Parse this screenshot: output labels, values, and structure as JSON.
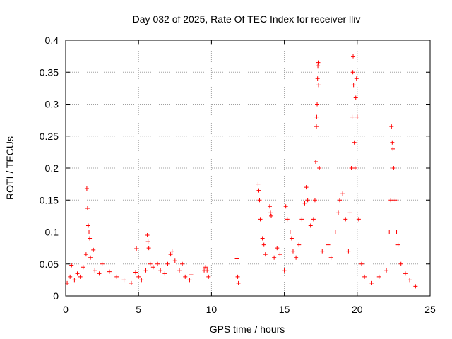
{
  "chart_data": {
    "type": "scatter",
    "title": "Day 032 of 2025, Rate Of TEC Index for receiver lliv",
    "xlabel": "GPS time / hours",
    "ylabel": "ROTI / TECUs",
    "xlim": [
      0,
      25
    ],
    "ylim": [
      0,
      0.4
    ],
    "x_ticks": [
      0,
      5,
      10,
      15,
      20,
      25
    ],
    "x_tick_labels": [
      "0",
      "5",
      "10",
      "15",
      "20",
      "25"
    ],
    "y_ticks": [
      0,
      0.05,
      0.1,
      0.15,
      0.2,
      0.25,
      0.3,
      0.35,
      0.4
    ],
    "y_tick_labels": [
      "0",
      "0.05",
      "0.1",
      "0.15",
      "0.2",
      "0.25",
      "0.3",
      "0.35",
      "0.4"
    ],
    "grid": true,
    "marker": "+",
    "marker_color": "#ff0000",
    "series": [
      {
        "values": [
          [
            0.1,
            0.02
          ],
          [
            0.3,
            0.03
          ],
          [
            0.4,
            0.048
          ],
          [
            0.6,
            0.025
          ],
          [
            0.8,
            0.035
          ],
          [
            1.0,
            0.03
          ],
          [
            1.2,
            0.045
          ],
          [
            1.4,
            0.065
          ],
          [
            1.45,
            0.168
          ],
          [
            1.5,
            0.137
          ],
          [
            1.55,
            0.11
          ],
          [
            1.6,
            0.1
          ],
          [
            1.65,
            0.09
          ],
          [
            1.7,
            0.06
          ],
          [
            1.9,
            0.072
          ],
          [
            2.0,
            0.04
          ],
          [
            2.3,
            0.035
          ],
          [
            2.5,
            0.05
          ],
          [
            3.0,
            0.038
          ],
          [
            3.5,
            0.03
          ],
          [
            4.0,
            0.025
          ],
          [
            4.5,
            0.02
          ],
          [
            4.8,
            0.037
          ],
          [
            4.85,
            0.074
          ],
          [
            5.0,
            0.03
          ],
          [
            5.2,
            0.025
          ],
          [
            5.5,
            0.04
          ],
          [
            5.6,
            0.095
          ],
          [
            5.65,
            0.085
          ],
          [
            5.7,
            0.075
          ],
          [
            5.8,
            0.05
          ],
          [
            6.0,
            0.045
          ],
          [
            6.3,
            0.05
          ],
          [
            6.5,
            0.04
          ],
          [
            6.8,
            0.035
          ],
          [
            7.0,
            0.05
          ],
          [
            7.2,
            0.065
          ],
          [
            7.3,
            0.07
          ],
          [
            7.5,
            0.055
          ],
          [
            7.8,
            0.04
          ],
          [
            8.0,
            0.05
          ],
          [
            8.2,
            0.03
          ],
          [
            8.5,
            0.025
          ],
          [
            8.6,
            0.033
          ],
          [
            9.5,
            0.04
          ],
          [
            9.6,
            0.045
          ],
          [
            9.7,
            0.04
          ],
          [
            9.8,
            0.03
          ],
          [
            11.75,
            0.058
          ],
          [
            11.8,
            0.03
          ],
          [
            11.85,
            0.02
          ],
          [
            13.2,
            0.175
          ],
          [
            13.25,
            0.165
          ],
          [
            13.3,
            0.15
          ],
          [
            13.35,
            0.12
          ],
          [
            13.5,
            0.09
          ],
          [
            13.6,
            0.08
          ],
          [
            13.7,
            0.065
          ],
          [
            14.0,
            0.14
          ],
          [
            14.05,
            0.13
          ],
          [
            14.1,
            0.125
          ],
          [
            14.3,
            0.06
          ],
          [
            14.5,
            0.075
          ],
          [
            14.7,
            0.065
          ],
          [
            15.0,
            0.04
          ],
          [
            15.1,
            0.14
          ],
          [
            15.2,
            0.12
          ],
          [
            15.4,
            0.1
          ],
          [
            15.5,
            0.09
          ],
          [
            15.6,
            0.07
          ],
          [
            15.8,
            0.06
          ],
          [
            16.0,
            0.08
          ],
          [
            16.2,
            0.12
          ],
          [
            16.4,
            0.145
          ],
          [
            16.5,
            0.17
          ],
          [
            16.6,
            0.15
          ],
          [
            16.8,
            0.11
          ],
          [
            17.0,
            0.12
          ],
          [
            17.1,
            0.15
          ],
          [
            17.15,
            0.21
          ],
          [
            17.2,
            0.265
          ],
          [
            17.22,
            0.28
          ],
          [
            17.25,
            0.3
          ],
          [
            17.28,
            0.34
          ],
          [
            17.3,
            0.36
          ],
          [
            17.32,
            0.365
          ],
          [
            17.35,
            0.33
          ],
          [
            17.4,
            0.2
          ],
          [
            17.6,
            0.07
          ],
          [
            18.0,
            0.08
          ],
          [
            18.2,
            0.06
          ],
          [
            18.5,
            0.1
          ],
          [
            18.7,
            0.13
          ],
          [
            18.8,
            0.15
          ],
          [
            19.0,
            0.16
          ],
          [
            19.2,
            0.12
          ],
          [
            19.4,
            0.07
          ],
          [
            19.5,
            0.13
          ],
          [
            19.6,
            0.2
          ],
          [
            19.65,
            0.28
          ],
          [
            19.7,
            0.35
          ],
          [
            19.72,
            0.375
          ],
          [
            19.75,
            0.33
          ],
          [
            19.8,
            0.24
          ],
          [
            19.85,
            0.2
          ],
          [
            19.9,
            0.31
          ],
          [
            19.95,
            0.34
          ],
          [
            20.0,
            0.28
          ],
          [
            20.1,
            0.12
          ],
          [
            20.3,
            0.05
          ],
          [
            20.5,
            0.03
          ],
          [
            21.0,
            0.02
          ],
          [
            21.5,
            0.03
          ],
          [
            22.0,
            0.04
          ],
          [
            22.2,
            0.1
          ],
          [
            22.3,
            0.15
          ],
          [
            22.35,
            0.265
          ],
          [
            22.4,
            0.24
          ],
          [
            22.45,
            0.23
          ],
          [
            22.5,
            0.2
          ],
          [
            22.6,
            0.15
          ],
          [
            22.7,
            0.1
          ],
          [
            22.8,
            0.08
          ],
          [
            23.0,
            0.05
          ],
          [
            23.3,
            0.035
          ],
          [
            23.6,
            0.025
          ],
          [
            24.0,
            0.015
          ]
        ]
      }
    ]
  }
}
